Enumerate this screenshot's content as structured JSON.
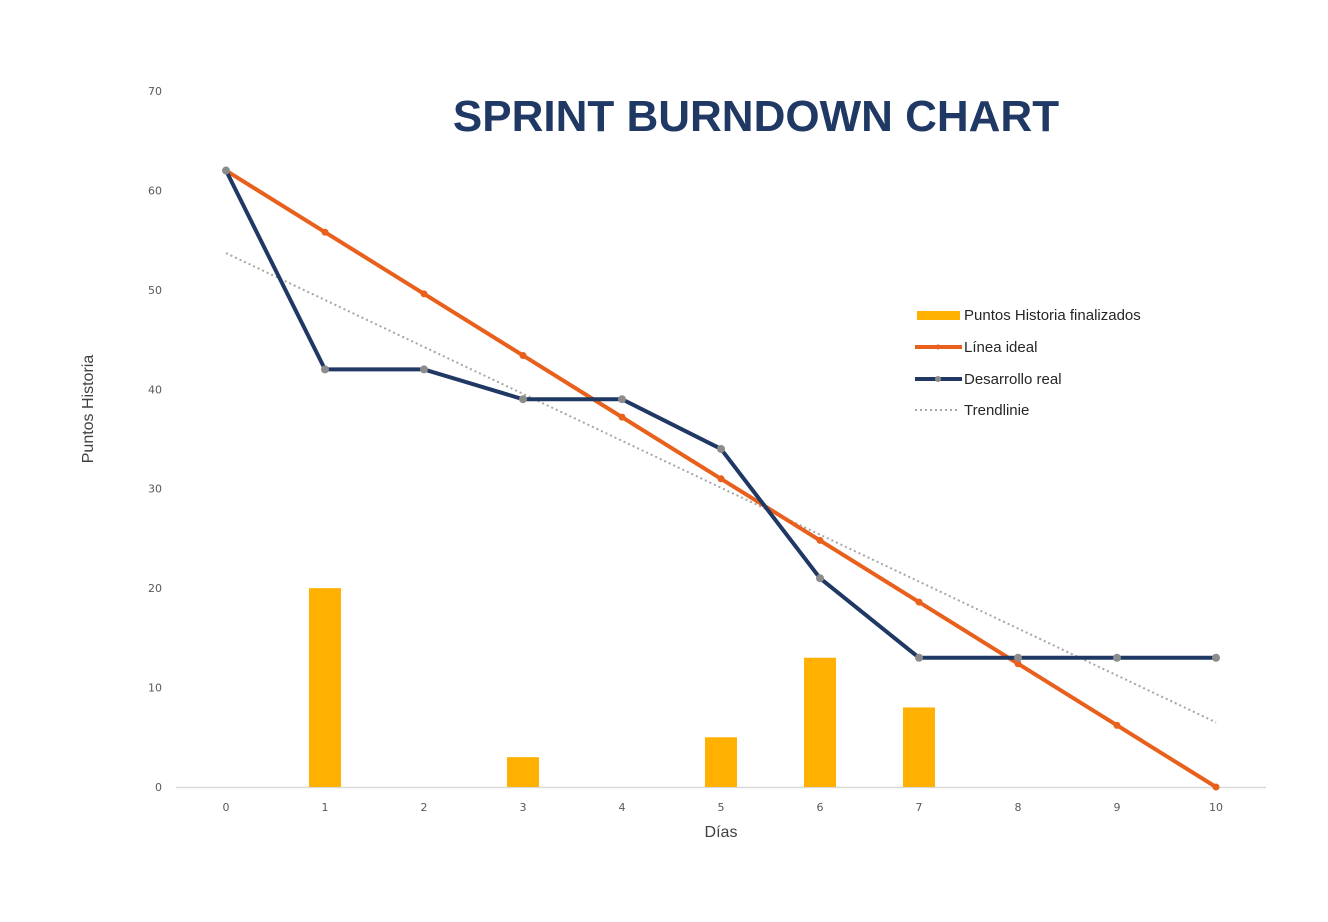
{
  "chart_data": {
    "type": "bar+line",
    "title": "SPRINT BURNDOWN CHART",
    "xlabel": "Días",
    "ylabel": "Puntos Historia",
    "categories": [
      "0",
      "1",
      "2",
      "3",
      "4",
      "5",
      "6",
      "7",
      "8",
      "9",
      "10"
    ],
    "x": [
      0,
      1,
      2,
      3,
      4,
      5,
      6,
      7,
      8,
      9,
      10
    ],
    "ylim": [
      0,
      70
    ],
    "yticks": [
      0,
      10,
      20,
      30,
      40,
      50,
      60,
      70
    ],
    "grid": false,
    "legend_position": "right",
    "series": [
      {
        "name": "Puntos Historia finalizados",
        "type": "bar",
        "color": "#ffb000",
        "values": [
          0,
          20,
          0,
          3,
          0,
          5,
          13,
          8,
          0,
          0,
          0
        ]
      },
      {
        "name": "Línea ideal",
        "type": "line",
        "color": "#e8601c",
        "values": [
          62,
          55.8,
          49.6,
          43.4,
          37.2,
          31,
          24.8,
          18.6,
          12.4,
          6.2,
          0
        ]
      },
      {
        "name": "Desarrollo real",
        "type": "line",
        "color": "#1f3864",
        "marker_color": "#8c8c8c",
        "values": [
          62,
          42,
          42,
          39,
          39,
          34,
          21,
          13,
          13,
          13,
          13
        ]
      },
      {
        "name": "Trendlinie",
        "type": "line",
        "style": "dotted",
        "color": "#a6a6a6",
        "values": [
          53.7,
          49.0,
          44.3,
          39.6,
          34.9,
          30.1,
          25.4,
          20.7,
          16.0,
          11.3,
          6.5
        ]
      }
    ]
  }
}
